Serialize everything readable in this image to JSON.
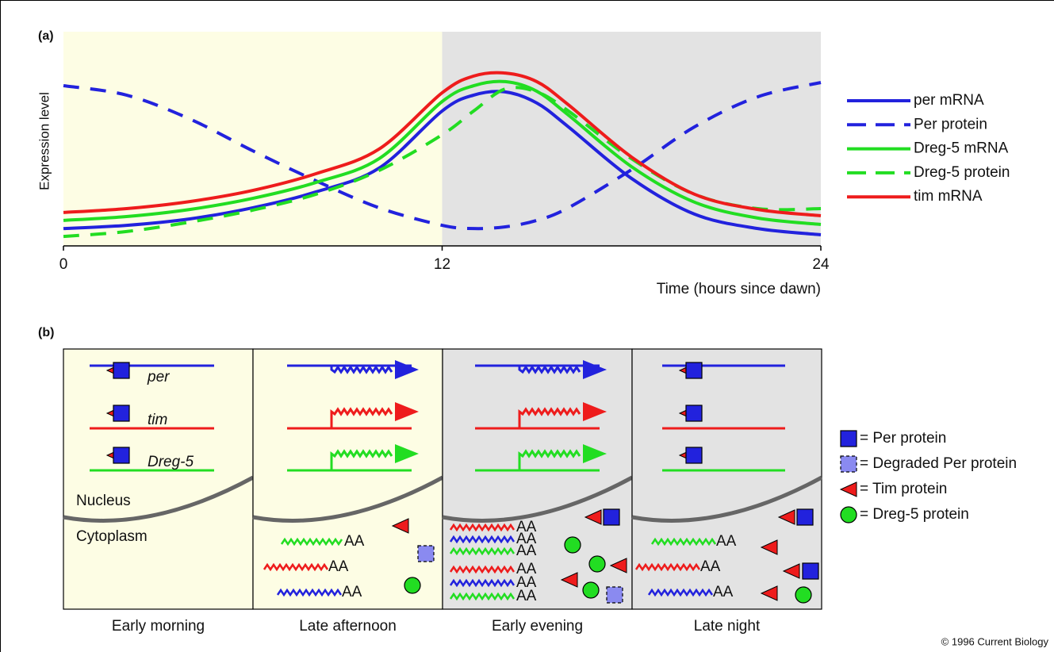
{
  "chart_data": {
    "type": "line",
    "panel_label": "(a)",
    "x_label": "Time (hours since dawn)",
    "y_label": "Expression level",
    "x": [
      0,
      2,
      4,
      6,
      8,
      10,
      12,
      13,
      14,
      15,
      16,
      18,
      20,
      22,
      24
    ],
    "xlim": [
      0,
      24
    ],
    "xticks": [
      0,
      12,
      24
    ],
    "ylim": [
      0,
      100
    ],
    "bands": [
      {
        "from": 0,
        "to": 12,
        "color": "#fdfde4"
      },
      {
        "from": 12,
        "to": 24,
        "color": "#e3e3e3"
      }
    ],
    "series": [
      {
        "name": "per mRNA",
        "color": "#2222dd",
        "dashed": false,
        "values": [
          8.1,
          9.6,
          12.6,
          17.8,
          25.2,
          36.3,
          63,
          70.4,
          71.9,
          66.7,
          55.6,
          31.5,
          14.8,
          8.1,
          5.2
        ]
      },
      {
        "name": "Per protein",
        "color": "#2222dd",
        "dashed": true,
        "values": [
          74.8,
          70.4,
          59.3,
          44.4,
          30.4,
          17.8,
          9.6,
          8.1,
          8.9,
          11.9,
          17.8,
          35.6,
          55.6,
          69.6,
          76.3
        ]
      },
      {
        "name": "Dreg-5 mRNA",
        "color": "#22dd22",
        "dashed": false,
        "values": [
          11.9,
          13.7,
          17,
          22.2,
          29.6,
          40.7,
          67.4,
          74.8,
          76.7,
          72.2,
          61.1,
          37,
          20.4,
          13,
          10
        ]
      },
      {
        "name": "Dreg-5 protein",
        "color": "#22dd22",
        "dashed": true,
        "values": [
          4.4,
          6.7,
          11.1,
          16.7,
          24.1,
          35.2,
          51.9,
          63,
          73.3,
          71.9,
          63,
          40.7,
          24.1,
          17.4,
          17.4
        ]
      },
      {
        "name": "tim mRNA",
        "color": "#ee1c1c",
        "dashed": false,
        "values": [
          15.6,
          17.4,
          20.7,
          25.9,
          33.7,
          45.2,
          71.5,
          79.3,
          80.7,
          76.7,
          65.9,
          41.5,
          24.1,
          17,
          14.1
        ]
      }
    ]
  },
  "panel_b": {
    "panel_label": "(b)",
    "genes": [
      "per",
      "tim",
      "Dreg-5"
    ],
    "compartments": [
      "Nucleus",
      "Cytoplasm"
    ],
    "tail": "AA",
    "columns": [
      "Early morning",
      "Late afternoon",
      "Early evening",
      "Late night"
    ],
    "legend": [
      "= Per protein",
      "= Degraded Per protein",
      "= Tim protein",
      "= Dreg-5 protein"
    ]
  },
  "credit": "© 1996 Current Biology"
}
